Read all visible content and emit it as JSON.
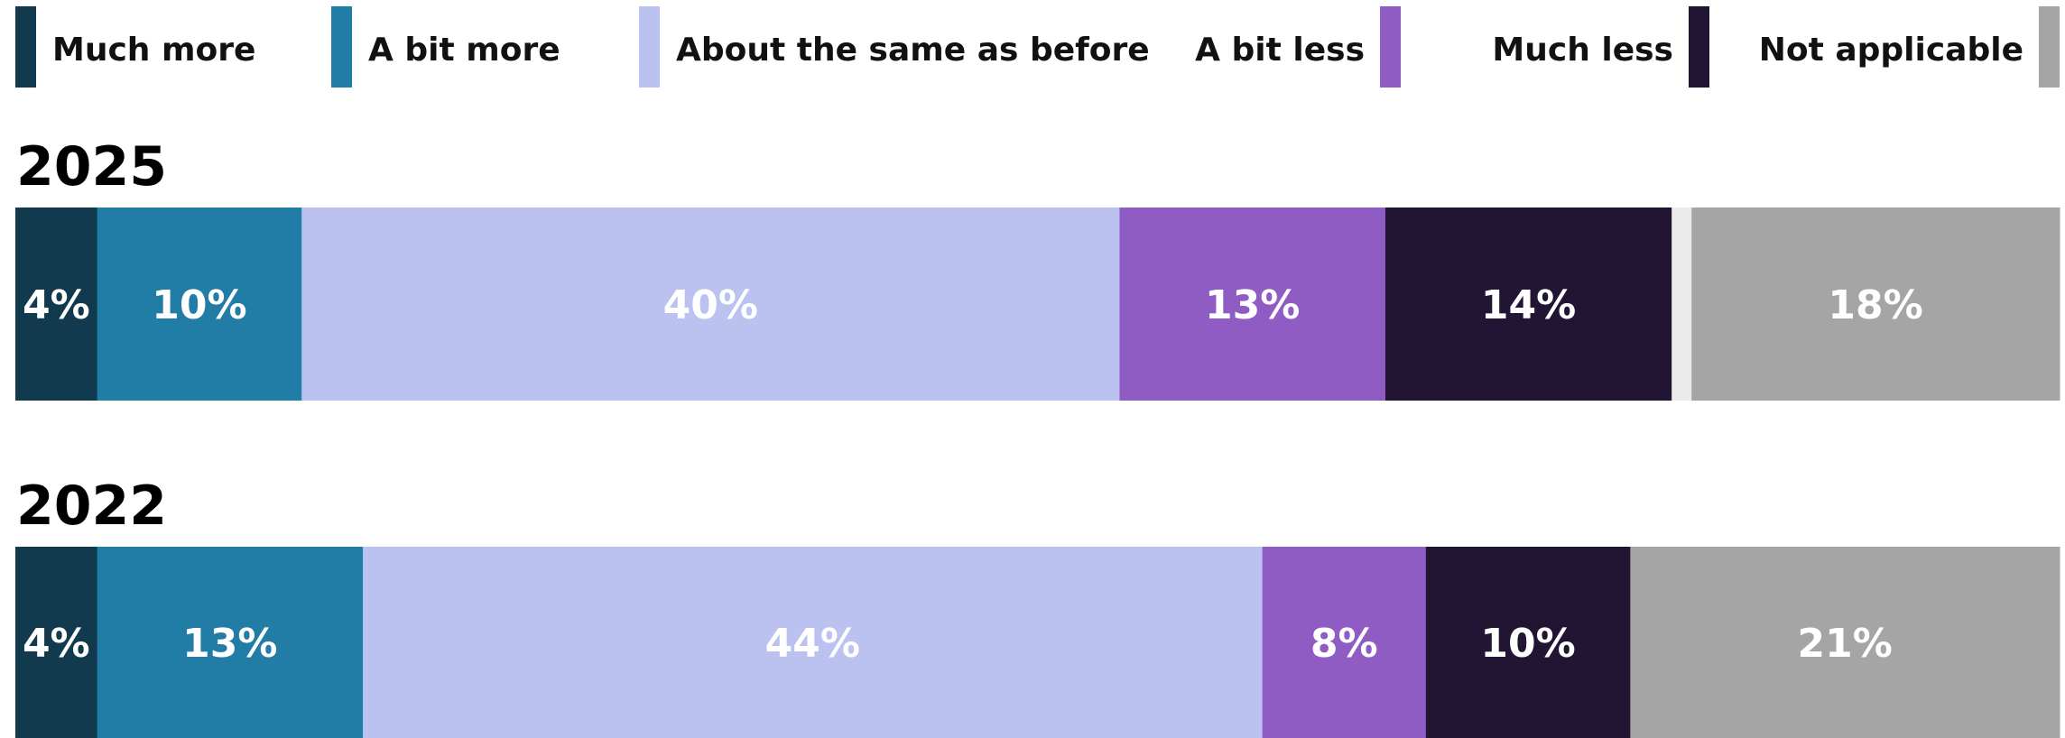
{
  "chart_data": {
    "type": "bar",
    "orientation": "horizontal",
    "stacked": true,
    "legend_position": "top",
    "grid": false,
    "legend": [
      {
        "label": "Much more",
        "color": "#123a4e"
      },
      {
        "label": "A bit more",
        "color": "#217ca6"
      },
      {
        "label": "About the same as before",
        "color": "#bbc2f0"
      },
      {
        "label": "A bit less",
        "color": "#8f5cc4"
      },
      {
        "label": "Much less",
        "color": "#211533"
      },
      {
        "label": "Not applicable",
        "color": "#a5a5a5"
      }
    ],
    "categories": [
      "2025",
      "2022"
    ],
    "series": [
      {
        "name": "Much more",
        "values": [
          4,
          4
        ],
        "labels": [
          "4%",
          "4%"
        ]
      },
      {
        "name": "A bit more",
        "values": [
          10,
          13
        ],
        "labels": [
          "10%",
          "13%"
        ]
      },
      {
        "name": "About the same as before",
        "values": [
          40,
          44
        ],
        "labels": [
          "40%",
          "44%"
        ]
      },
      {
        "name": "A bit less",
        "values": [
          13,
          8
        ],
        "labels": [
          "13%",
          "8%"
        ]
      },
      {
        "name": "Much less",
        "values": [
          14,
          10
        ],
        "labels": [
          "14%",
          "10%"
        ]
      },
      {
        "name": "Not applicable",
        "values": [
          18,
          21
        ],
        "labels": [
          "18%",
          "21%"
        ]
      }
    ]
  }
}
